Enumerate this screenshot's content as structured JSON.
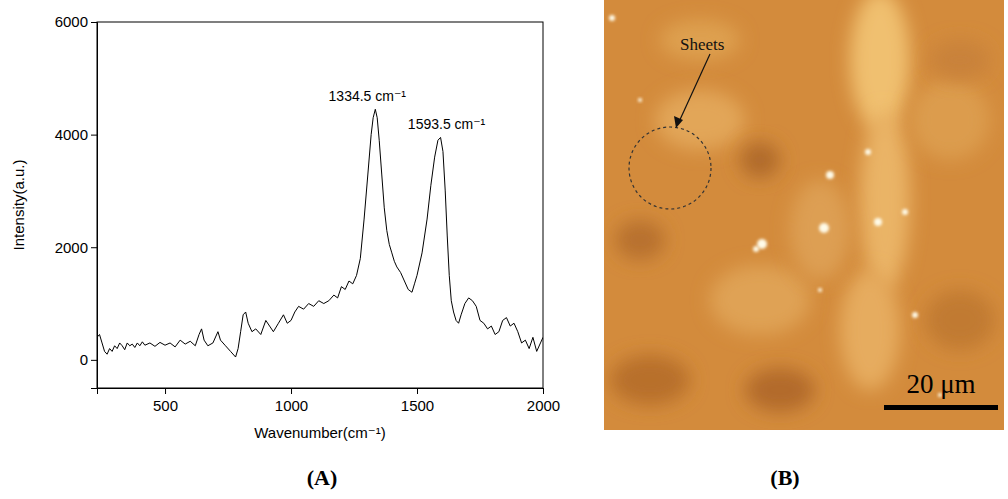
{
  "chart_data": {
    "type": "line",
    "xlabel": "Wavenumber(cm⁻¹)",
    "ylabel": "Intensity(a.u.)",
    "color": "#000000",
    "x": [
      230,
      240,
      250,
      260,
      270,
      280,
      290,
      300,
      310,
      320,
      330,
      340,
      350,
      360,
      370,
      380,
      390,
      400,
      410,
      420,
      440,
      460,
      480,
      500,
      520,
      540,
      560,
      580,
      600,
      620,
      635,
      645,
      655,
      670,
      690,
      710,
      720,
      740,
      760,
      780,
      790,
      800,
      810,
      820,
      830,
      845,
      860,
      880,
      900,
      915,
      930,
      950,
      970,
      985,
      1000,
      1015,
      1030,
      1050,
      1070,
      1090,
      1110,
      1130,
      1150,
      1170,
      1185,
      1200,
      1215,
      1230,
      1245,
      1260,
      1275,
      1290,
      1305,
      1318,
      1326,
      1334.5,
      1342,
      1350,
      1360,
      1370,
      1380,
      1390,
      1400,
      1410,
      1420,
      1435,
      1450,
      1465,
      1480,
      1490,
      1500,
      1520,
      1540,
      1555,
      1570,
      1583,
      1593.5,
      1603,
      1612,
      1620,
      1628,
      1636,
      1645,
      1655,
      1665,
      1675,
      1690,
      1705,
      1720,
      1735,
      1750,
      1765,
      1780,
      1795,
      1810,
      1825,
      1840,
      1855,
      1870,
      1885,
      1900,
      1915,
      1930,
      1945,
      1960,
      1975,
      1990,
      2000
    ],
    "values": [
      400,
      450,
      300,
      150,
      100,
      200,
      150,
      250,
      200,
      300,
      250,
      180,
      300,
      250,
      280,
      220,
      300,
      250,
      320,
      260,
      300,
      240,
      310,
      260,
      300,
      230,
      350,
      280,
      330,
      250,
      450,
      550,
      350,
      250,
      300,
      500,
      350,
      250,
      150,
      50,
      200,
      500,
      800,
      850,
      650,
      500,
      550,
      450,
      700,
      600,
      500,
      650,
      800,
      650,
      700,
      850,
      950,
      900,
      1000,
      950,
      1050,
      1000,
      1050,
      1150,
      1100,
      1300,
      1250,
      1400,
      1350,
      1500,
      1800,
      2500,
      3300,
      4000,
      4300,
      4450,
      4300,
      3900,
      3300,
      2700,
      2300,
      2050,
      1900,
      1750,
      1650,
      1550,
      1400,
      1250,
      1200,
      1350,
      1500,
      1900,
      2500,
      3100,
      3600,
      3900,
      3950,
      3700,
      3000,
      2200,
      1500,
      1050,
      850,
      700,
      650,
      800,
      1000,
      1100,
      1050,
      950,
      700,
      650,
      550,
      600,
      450,
      500,
      700,
      750,
      600,
      650,
      500,
      300,
      350,
      200,
      400,
      150,
      300,
      400
    ],
    "xlim": [
      230,
      2000
    ],
    "xticks": [
      500,
      1000,
      1500,
      2000
    ],
    "ylim": [
      -500,
      6000
    ],
    "yticks": [
      0,
      2000,
      4000,
      6000
    ],
    "annotations": [
      {
        "text": "1334.5 cm⁻¹",
        "x": 1334.5,
        "y": 4450
      },
      {
        "text": "1593.5 cm⁻¹",
        "x": 1593.5,
        "y": 3950
      }
    ]
  },
  "panel_labels": [
    "(A)",
    "(B)"
  ],
  "image": {
    "annotation": "Sheets",
    "scale_bar": "20 μm"
  }
}
